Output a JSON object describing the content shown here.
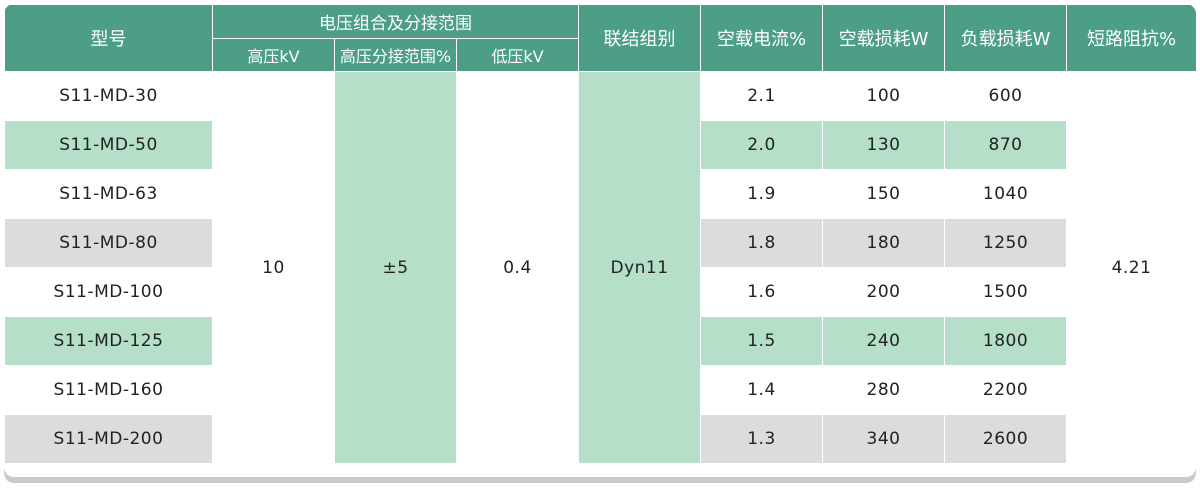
{
  "header": {
    "model": "型号",
    "voltage_group": "电压组合及分接范围",
    "hv": "高压kV",
    "tap_range": "高压分接范围%",
    "lv": "低压kV",
    "vector_group": "联结组别",
    "no_load_current": "空载电流%",
    "no_load_loss": "空载损耗W",
    "load_loss": "负载损耗W",
    "impedance": "短路阻抗%"
  },
  "shared": {
    "hv": "10",
    "tap_range": "±5",
    "lv": "0.4",
    "vector_group": "Dyn11",
    "impedance": "4.21"
  },
  "rows": [
    {
      "model": "S11-MD-30",
      "no_load_current": "2.1",
      "no_load_loss": "100",
      "load_loss": "600"
    },
    {
      "model": "S11-MD-50",
      "no_load_current": "2.0",
      "no_load_loss": "130",
      "load_loss": "870"
    },
    {
      "model": "S11-MD-63",
      "no_load_current": "1.9",
      "no_load_loss": "150",
      "load_loss": "1040"
    },
    {
      "model": "S11-MD-80",
      "no_load_current": "1.8",
      "no_load_loss": "180",
      "load_loss": "1250"
    },
    {
      "model": "S11-MD-100",
      "no_load_current": "1.6",
      "no_load_loss": "200",
      "load_loss": "1500"
    },
    {
      "model": "S11-MD-125",
      "no_load_current": "1.5",
      "no_load_loss": "240",
      "load_loss": "1800"
    },
    {
      "model": "S11-MD-160",
      "no_load_current": "1.4",
      "no_load_loss": "280",
      "load_loss": "2200"
    },
    {
      "model": "S11-MD-200",
      "no_load_current": "1.3",
      "no_load_loss": "340",
      "load_loss": "2600"
    }
  ],
  "colors": {
    "header": "#4c9e87",
    "green_row": "#b5dfc9",
    "gray_row": "#dcdcdc"
  }
}
